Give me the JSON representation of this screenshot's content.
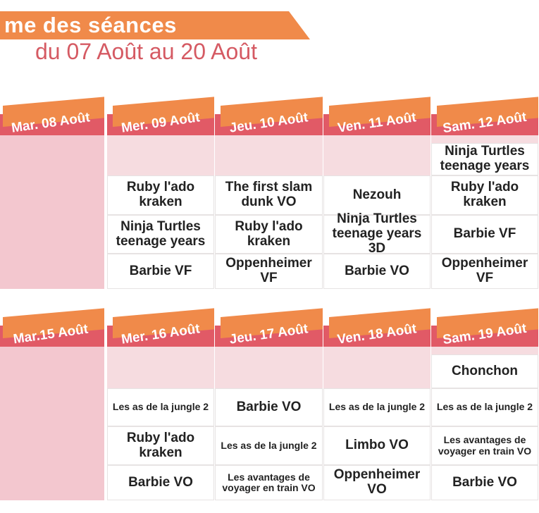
{
  "header": {
    "title": "me des séances",
    "subtitle": "du 07 Août au 20 Août"
  },
  "weeks": [
    {
      "days": [
        "Mar. 08 Août",
        "Mer. 09 Août",
        "Jeu. 10 Août",
        "Ven. 11 Août",
        "Sam. 12 Août"
      ],
      "rows": [
        [
          "",
          "",
          "",
          "",
          "Ninja Turtles teenage years"
        ],
        [
          "",
          "Ruby l'ado kraken",
          "The first slam dunk VO",
          "Nezouh",
          "Ruby l'ado kraken"
        ],
        [
          "",
          "Ninja Turtles teenage years",
          "Ruby l'ado kraken",
          "Ninja Turtles teenage years 3D",
          "Barbie VF"
        ],
        [
          "",
          "Barbie VF",
          "Oppenheimer VF",
          "Barbie VO",
          "Oppenheimer VF"
        ]
      ]
    },
    {
      "days": [
        "Mar.15 Août",
        "Mer. 16 Août",
        "Jeu. 17 Août",
        "Ven. 18 Août",
        "Sam. 19 Août"
      ],
      "rows": [
        [
          "",
          "",
          "",
          "",
          "Chonchon"
        ],
        [
          "",
          "Les as de la jungle 2",
          "Barbie VO",
          "Les as de la jungle 2",
          "Les as de la jungle 2"
        ],
        [
          "",
          "Ruby l'ado kraken",
          "Les as de la jungle 2",
          "Limbo VO",
          "Les avantages de voyager en train VO"
        ],
        [
          "",
          "Barbie VO",
          "Les avantages de voyager en train VO",
          "Oppenheimer VO",
          "Barbie VO"
        ]
      ]
    }
  ]
}
